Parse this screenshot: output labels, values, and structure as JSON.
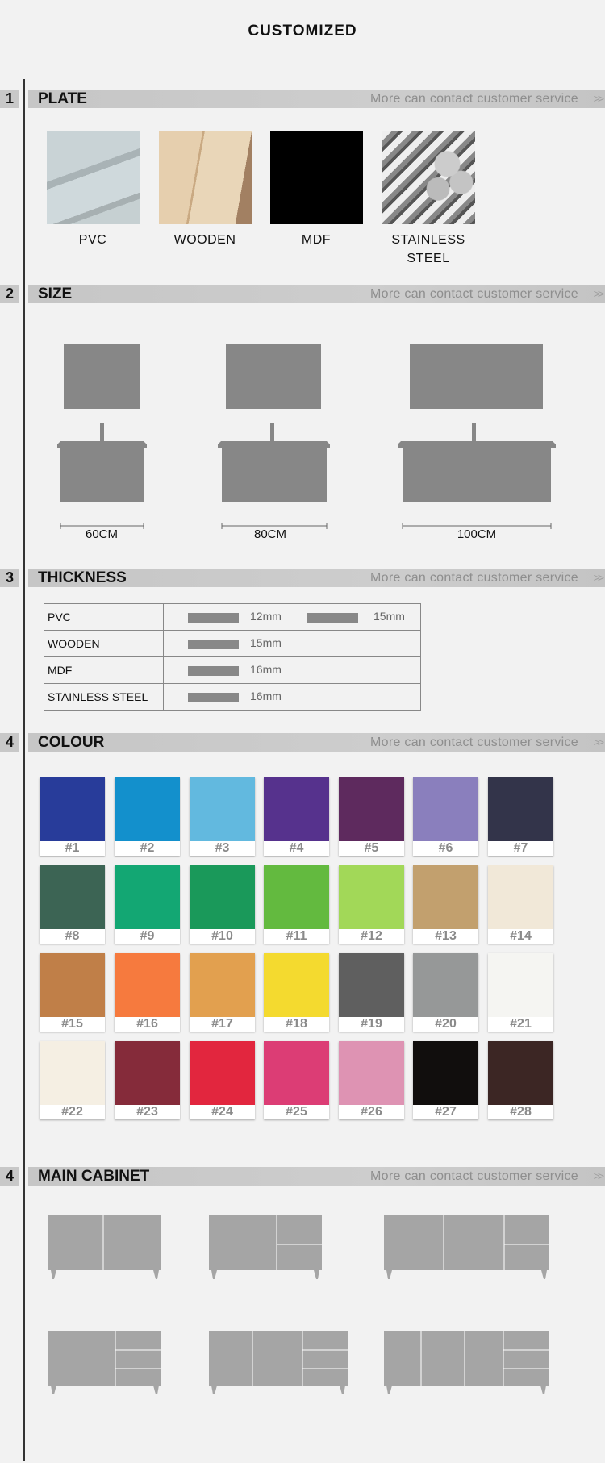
{
  "title": "CUSTOMIZED",
  "more_text": "More can contact customer service",
  "more_icon": "double-chevron-right-icon",
  "sections": [
    {
      "num": "1",
      "title": "PLATE"
    },
    {
      "num": "2",
      "title": "SIZE"
    },
    {
      "num": "3",
      "title": "THICKNESS"
    },
    {
      "num": "4",
      "title": "COLOUR"
    },
    {
      "num": "4",
      "title": "MAIN CABINET"
    }
  ],
  "plates": [
    {
      "label": "PVC"
    },
    {
      "label": "WOODEN"
    },
    {
      "label": "MDF"
    },
    {
      "label": "STAINLESS STEEL"
    }
  ],
  "sizes": [
    "60CM",
    "80CM",
    "100CM"
  ],
  "thickness": [
    {
      "material": "PVC",
      "values": [
        "12mm",
        "15mm"
      ]
    },
    {
      "material": "WOODEN",
      "values": [
        "15mm"
      ]
    },
    {
      "material": "MDF",
      "values": [
        "16mm"
      ]
    },
    {
      "material": "STAINLESS STEEL",
      "values": [
        "16mm"
      ]
    }
  ],
  "colours": [
    {
      "label": "#1",
      "hex": "#283c9a"
    },
    {
      "label": "#2",
      "hex": "#1390cc"
    },
    {
      "label": "#3",
      "hex": "#62b9df"
    },
    {
      "label": "#4",
      "hex": "#56328d"
    },
    {
      "label": "#5",
      "hex": "#5e2a5e"
    },
    {
      "label": "#6",
      "hex": "#8a7fbd"
    },
    {
      "label": "#7",
      "hex": "#33344a"
    },
    {
      "label": "#8",
      "hex": "#3c6454"
    },
    {
      "label": "#9",
      "hex": "#13a773"
    },
    {
      "label": "#10",
      "hex": "#1a995a"
    },
    {
      "label": "#11",
      "hex": "#63ba3f"
    },
    {
      "label": "#12",
      "hex": "#a2d858"
    },
    {
      "label": "#13",
      "hex": "#c2a06e"
    },
    {
      "label": "#14",
      "hex": "#f1e8d8"
    },
    {
      "label": "#15",
      "hex": "#c07f48"
    },
    {
      "label": "#16",
      "hex": "#f67a3e"
    },
    {
      "label": "#17",
      "hex": "#e2a04f"
    },
    {
      "label": "#18",
      "hex": "#f4da2f"
    },
    {
      "label": "#19",
      "hex": "#5f5f5f"
    },
    {
      "label": "#20",
      "hex": "#969898"
    },
    {
      "label": "#21",
      "hex": "#f5f5f2"
    },
    {
      "label": "#22",
      "hex": "#f5efe3"
    },
    {
      "label": "#23",
      "hex": "#852b3a"
    },
    {
      "label": "#24",
      "hex": "#e2263e"
    },
    {
      "label": "#25",
      "hex": "#dc3d75"
    },
    {
      "label": "#26",
      "hex": "#de93b3"
    },
    {
      "label": "#27",
      "hex": "#110e0d"
    },
    {
      "label": "#28",
      "hex": "#3c2624"
    }
  ]
}
